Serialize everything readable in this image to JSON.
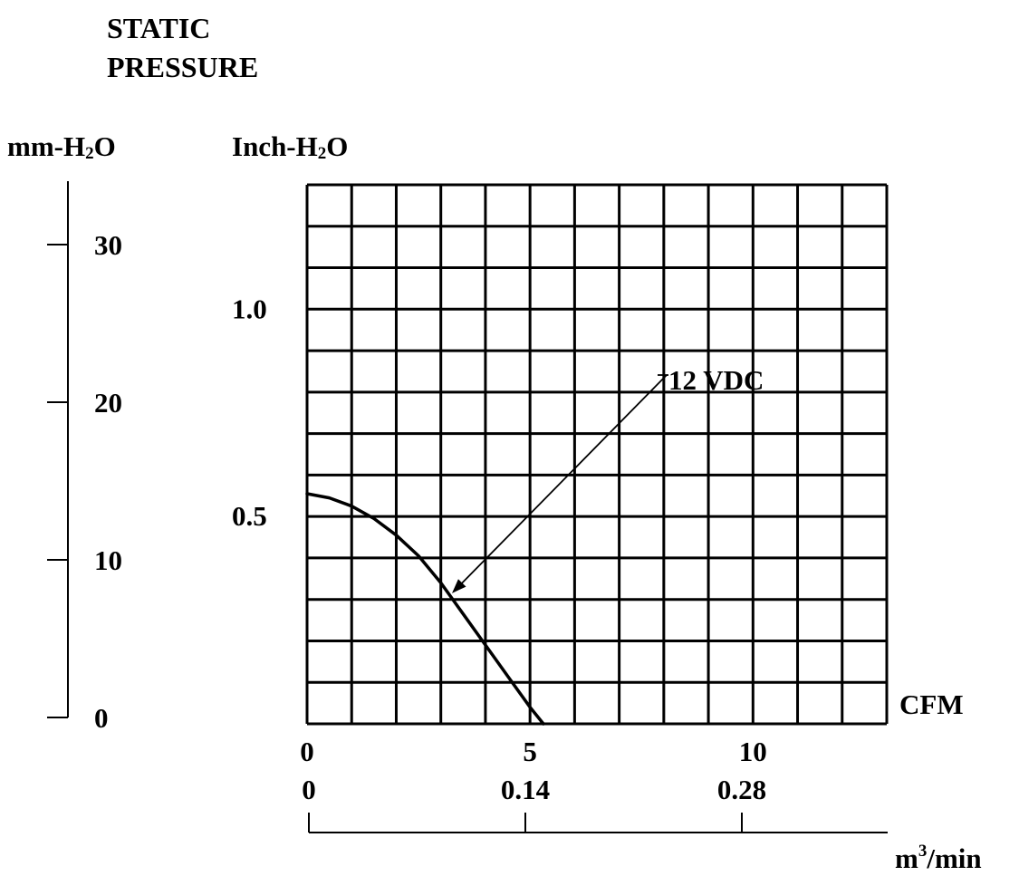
{
  "chart_data": {
    "type": "line",
    "title": "STATIC PRESSURE",
    "title_lines": [
      "STATIC",
      "PRESSURE"
    ],
    "y_axis_primary": {
      "label": "Inch-H₂O",
      "label_main": "Inch-H",
      "label_sub": "2",
      "label_end": "O",
      "ticks": [
        "0.5",
        "1.0"
      ],
      "tick_values": [
        0.5,
        1.0
      ],
      "range": [
        0,
        1.3
      ]
    },
    "y_axis_secondary": {
      "label": "mm-H₂O",
      "label_main": "mm-H",
      "label_sub": "2",
      "label_end": "O",
      "ticks": [
        "0",
        "10",
        "20",
        "30"
      ],
      "tick_values": [
        0,
        10,
        20,
        30
      ]
    },
    "x_axis_primary": {
      "label": "CFM",
      "ticks": [
        "0",
        "5",
        "10"
      ],
      "tick_values": [
        0,
        5,
        10
      ],
      "range": [
        0,
        13
      ]
    },
    "x_axis_secondary": {
      "label": "m³/min",
      "label_main": "m",
      "label_sup": "3",
      "label_end": "/min",
      "ticks": [
        "0",
        "0.14",
        "0.28"
      ],
      "tick_values": [
        0,
        0.14,
        0.28
      ]
    },
    "grid": true,
    "series": [
      {
        "name": "12 VDC",
        "x": [
          0,
          0.5,
          1,
          1.5,
          2,
          2.5,
          3,
          3.5,
          4,
          4.5,
          5,
          5.3
        ],
        "y": [
          0.555,
          0.545,
          0.525,
          0.495,
          0.455,
          0.405,
          0.34,
          0.265,
          0.19,
          0.115,
          0.04,
          0.0
        ]
      }
    ],
    "annotations": [
      {
        "text": "12 VDC",
        "points_to": {
          "x": 3.25,
          "y": 0.315
        }
      }
    ],
    "legend": "none"
  }
}
